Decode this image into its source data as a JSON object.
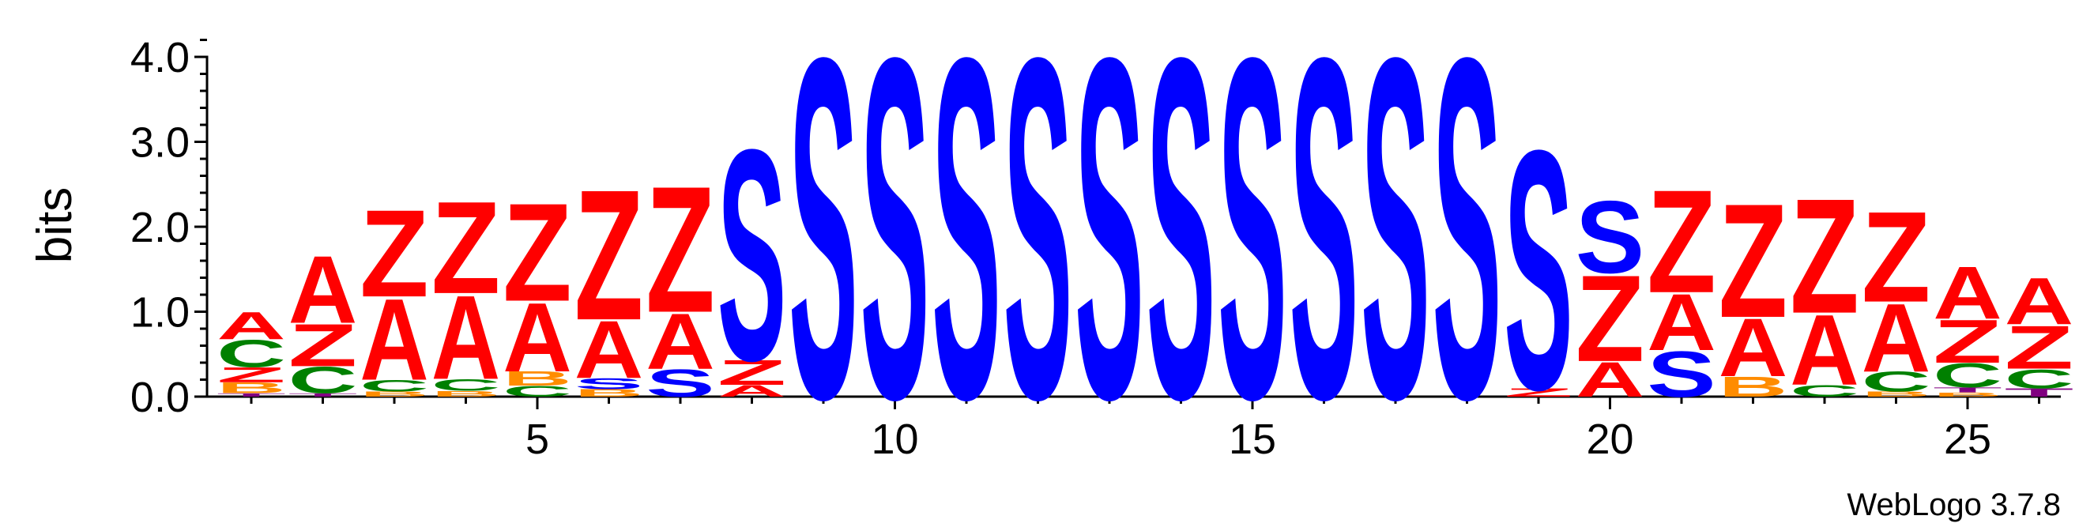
{
  "chart_data": {
    "type": "sequence-logo",
    "ylabel": "bits",
    "ylim": [
      0,
      4.2
    ],
    "yticks": [
      "0.0",
      "1.0",
      "2.0",
      "3.0",
      "4.0"
    ],
    "xticks": [
      {
        "pos": 5,
        "label": "5"
      },
      {
        "pos": 10,
        "label": "10"
      },
      {
        "pos": 15,
        "label": "15"
      },
      {
        "pos": 20,
        "label": "20"
      },
      {
        "pos": 25,
        "label": "25"
      }
    ],
    "credit": "WebLogo 3.7.8",
    "colors": {
      "A": "#ff0000",
      "Z": "#ff0000",
      "C": "#008000",
      "B": "#ff8c00",
      "S": "#0000ff",
      "T": "#800080"
    },
    "positions": [
      [
        [
          "T",
          0.04
        ],
        [
          "B",
          0.13
        ],
        [
          "Z",
          0.18
        ],
        [
          "C",
          0.33
        ],
        [
          "A",
          0.33
        ]
      ],
      [
        [
          "T",
          0.04
        ],
        [
          "C",
          0.32
        ],
        [
          "Z",
          0.51
        ],
        [
          "A",
          0.81
        ]
      ],
      [
        [
          "B",
          0.06
        ],
        [
          "C",
          0.14
        ],
        [
          "A",
          0.98
        ],
        [
          "Z",
          1.05
        ]
      ],
      [
        [
          "B",
          0.07
        ],
        [
          "C",
          0.14
        ],
        [
          "A",
          1.01
        ],
        [
          "Z",
          1.11
        ]
      ],
      [
        [
          "C",
          0.13
        ],
        [
          "B",
          0.17
        ],
        [
          "A",
          0.83
        ],
        [
          "Z",
          1.18
        ]
      ],
      [
        [
          "B",
          0.09
        ],
        [
          "S",
          0.13
        ],
        [
          "A",
          0.69
        ],
        [
          "Z",
          1.57
        ]
      ],
      [
        [
          "S",
          0.33
        ],
        [
          "A",
          0.67
        ],
        [
          "Z",
          1.52
        ]
      ],
      [
        [
          "A",
          0.14
        ],
        [
          "Z",
          0.3
        ],
        [
          "S",
          2.54
        ]
      ],
      [
        [
          "S",
          4.1
        ]
      ],
      [
        [
          "S",
          4.1
        ]
      ],
      [
        [
          "S",
          4.1
        ]
      ],
      [
        [
          "S",
          4.1
        ]
      ],
      [
        [
          "S",
          4.1
        ]
      ],
      [
        [
          "S",
          4.1
        ]
      ],
      [
        [
          "S",
          4.1
        ]
      ],
      [
        [
          "S",
          4.1
        ]
      ],
      [
        [
          "S",
          4.1
        ]
      ],
      [
        [
          "S",
          4.1
        ]
      ],
      [
        [
          "Z",
          0.1
        ],
        [
          "S",
          2.88
        ]
      ],
      [
        [
          "A",
          0.42
        ],
        [
          "Z",
          1.04
        ],
        [
          "S",
          0.87
        ]
      ],
      [
        [
          "S",
          0.55
        ],
        [
          "A",
          0.68
        ],
        [
          "Z",
          1.24
        ]
      ],
      [
        [
          "B",
          0.24
        ],
        [
          "A",
          0.7
        ],
        [
          "Z",
          1.37
        ]
      ],
      [
        [
          "C",
          0.14
        ],
        [
          "A",
          0.85
        ],
        [
          "Z",
          1.38
        ]
      ],
      [
        [
          "B",
          0.06
        ],
        [
          "C",
          0.24
        ],
        [
          "A",
          0.82
        ],
        [
          "Z",
          1.09
        ]
      ],
      [
        [
          "B",
          0.05
        ],
        [
          "T",
          0.06
        ],
        [
          "C",
          0.29
        ],
        [
          "Z",
          0.52
        ],
        [
          "A",
          0.63
        ]
      ],
      [
        [
          "T",
          0.1
        ],
        [
          "C",
          0.23
        ],
        [
          "Z",
          0.52
        ],
        [
          "A",
          0.56
        ]
      ]
    ]
  }
}
